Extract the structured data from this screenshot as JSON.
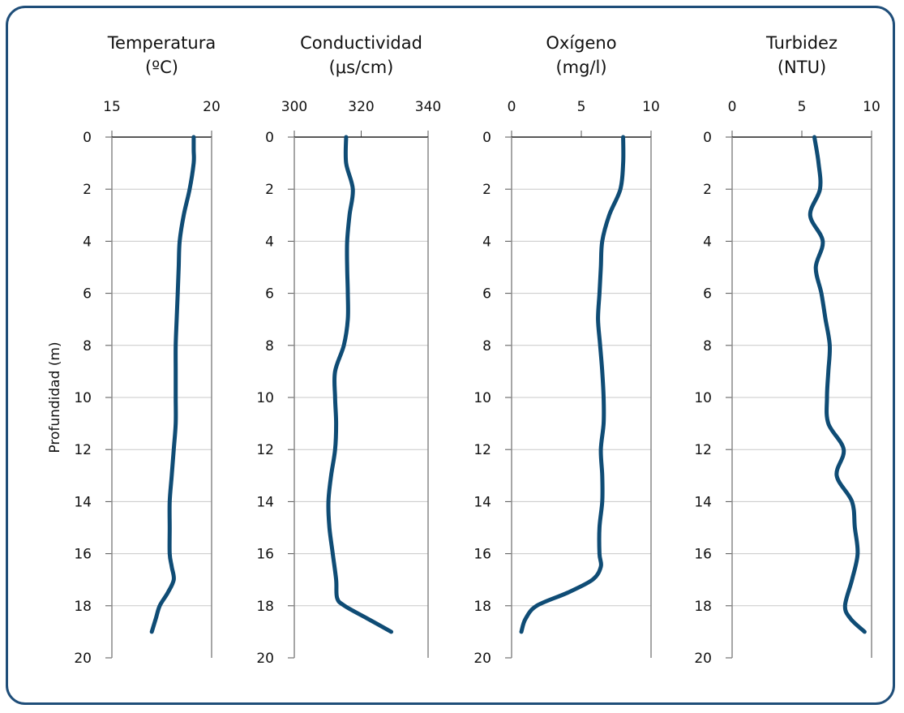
{
  "chart_data": [
    {
      "type": "line",
      "title": [
        "Temperatura",
        "(ºC)"
      ],
      "xlim": [
        15,
        20
      ],
      "xticks": [
        "15",
        "20"
      ],
      "ylabel": "Profundidad (m)",
      "ylim": [
        0,
        20
      ],
      "yticks": [
        "0",
        "2",
        "4",
        "6",
        "8",
        "10",
        "12",
        "14",
        "16",
        "18",
        "20"
      ],
      "y_inverted": true,
      "grid": "horizontal",
      "series": [
        {
          "depth": [
            0,
            0.5,
            1,
            2,
            3,
            4,
            5,
            6,
            7,
            8,
            9,
            10,
            11,
            12,
            13,
            14,
            15,
            16,
            16.5,
            17,
            17.5,
            18,
            18.5,
            19
          ],
          "values": [
            19.1,
            19.1,
            19.1,
            18.9,
            18.6,
            18.4,
            18.35,
            18.3,
            18.25,
            18.2,
            18.2,
            18.2,
            18.2,
            18.1,
            18.0,
            17.9,
            17.9,
            17.9,
            18.0,
            18.1,
            17.8,
            17.4,
            17.2,
            17.0
          ]
        }
      ],
      "line_color": "#0f4c75"
    },
    {
      "type": "line",
      "title": [
        "Conductividad",
        "(μs/cm)"
      ],
      "xlim": [
        300,
        340
      ],
      "xticks": [
        "300",
        "320",
        "340"
      ],
      "ylim": [
        0,
        20
      ],
      "yticks": [
        "0",
        "2",
        "4",
        "6",
        "8",
        "10",
        "12",
        "14",
        "16",
        "18",
        "20"
      ],
      "y_inverted": true,
      "grid": "horizontal",
      "series": [
        {
          "depth": [
            0,
            1,
            2,
            3,
            4,
            5,
            6,
            7,
            8,
            9,
            10,
            11,
            12,
            13,
            14,
            15,
            16,
            17,
            17.7,
            18,
            18.5,
            19
          ],
          "values": [
            315.5,
            315.5,
            317.5,
            316.5,
            315.8,
            315.8,
            316,
            316,
            314.8,
            312.2,
            312.2,
            312.5,
            312.2,
            311.0,
            310.2,
            310.5,
            311.5,
            312.5,
            312.8,
            315,
            322,
            329
          ]
        }
      ],
      "line_color": "#0f4c75"
    },
    {
      "type": "line",
      "title": [
        "Oxígeno",
        "(mg/l)"
      ],
      "xlim": [
        0,
        10
      ],
      "xticks": [
        "0",
        "5",
        "10"
      ],
      "ylim": [
        0,
        20
      ],
      "yticks": [
        "0",
        "2",
        "4",
        "6",
        "8",
        "10",
        "12",
        "14",
        "16",
        "18",
        "20"
      ],
      "y_inverted": true,
      "grid": "horizontal",
      "series": [
        {
          "depth": [
            0,
            1,
            2,
            3,
            4,
            5,
            6,
            7,
            8,
            9,
            10,
            11,
            12,
            13,
            14,
            15,
            16,
            16.5,
            17,
            17.5,
            18,
            18.5,
            19
          ],
          "values": [
            8.0,
            8.0,
            7.8,
            7.0,
            6.5,
            6.4,
            6.3,
            6.2,
            6.35,
            6.5,
            6.6,
            6.6,
            6.4,
            6.5,
            6.5,
            6.3,
            6.3,
            6.4,
            5.8,
            4.0,
            1.8,
            1.0,
            0.7
          ]
        }
      ],
      "line_color": "#0f4c75"
    },
    {
      "type": "line",
      "title": [
        "Turbidez",
        "(NTU)"
      ],
      "xlim": [
        0,
        10
      ],
      "xticks": [
        "0",
        "5",
        "10"
      ],
      "ylim": [
        0,
        20
      ],
      "yticks": [
        "0",
        "2",
        "4",
        "6",
        "8",
        "10",
        "12",
        "14",
        "16",
        "18",
        "20"
      ],
      "y_inverted": true,
      "grid": "horizontal",
      "series": [
        {
          "depth": [
            0,
            1,
            2,
            3,
            4,
            5,
            6,
            7,
            8,
            9,
            10,
            11,
            12,
            13,
            14,
            15,
            16,
            17,
            18,
            18.5,
            19
          ],
          "values": [
            5.9,
            6.2,
            6.3,
            5.6,
            6.5,
            6.0,
            6.4,
            6.7,
            7.0,
            6.9,
            6.8,
            6.9,
            8.0,
            7.5,
            8.6,
            8.8,
            9.0,
            8.6,
            8.1,
            8.5,
            9.5
          ]
        }
      ],
      "line_color": "#0f4c75"
    }
  ]
}
